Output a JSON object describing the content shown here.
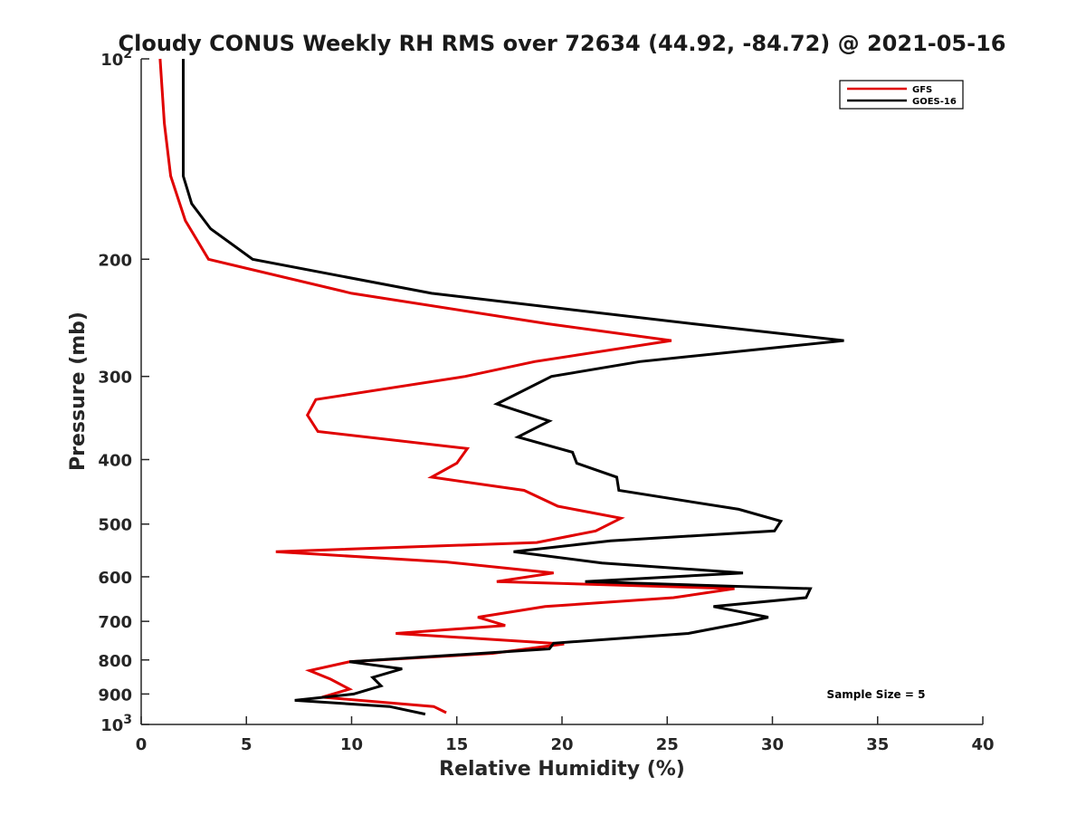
{
  "chart_data": {
    "type": "line",
    "title": "Cloudy CONUS Weekly RH RMS over 72634 (44.92, -84.72) @ 2021-05-16",
    "xlabel": "Relative Humidity (%)",
    "ylabel": "Pressure (mb)",
    "xlim": [
      0,
      40
    ],
    "ylim": [
      100,
      1000
    ],
    "yscale": "log",
    "y_reversed": true,
    "grid": false,
    "legend_position": "top-right",
    "x_ticks": [
      0,
      5,
      10,
      15,
      20,
      25,
      30,
      35,
      40
    ],
    "x_tick_labels": [
      "0",
      "5",
      "10",
      "15",
      "20",
      "25",
      "30",
      "35",
      "40"
    ],
    "y_ticks": [
      {
        "value": 100,
        "base": "10",
        "exp": "2"
      },
      {
        "value": 200,
        "label": "200"
      },
      {
        "value": 300,
        "label": "300"
      },
      {
        "value": 400,
        "label": "400"
      },
      {
        "value": 500,
        "label": "500"
      },
      {
        "value": 600,
        "label": "600"
      },
      {
        "value": 700,
        "label": "700"
      },
      {
        "value": 800,
        "label": "800"
      },
      {
        "value": 900,
        "label": "900"
      },
      {
        "value": 1000,
        "base": "10",
        "exp": "3"
      }
    ],
    "series": [
      {
        "name": "GFS",
        "color": "#e00000",
        "points": [
          [
            0.9,
            100
          ],
          [
            1.1,
            125
          ],
          [
            1.4,
            150
          ],
          [
            2.1,
            175
          ],
          [
            3.2,
            200
          ],
          [
            10.0,
            225
          ],
          [
            19.3,
            250
          ],
          [
            25.2,
            265
          ],
          [
            18.7,
            285
          ],
          [
            15.4,
            300
          ],
          [
            8.3,
            325
          ],
          [
            7.9,
            343
          ],
          [
            8.4,
            363
          ],
          [
            15.5,
            385
          ],
          [
            15.0,
            405
          ],
          [
            13.8,
            425
          ],
          [
            18.2,
            445
          ],
          [
            19.8,
            470
          ],
          [
            22.8,
            490
          ],
          [
            21.6,
            512
          ],
          [
            18.8,
            533
          ],
          [
            6.4,
            550
          ],
          [
            14.5,
            570
          ],
          [
            19.6,
            592
          ],
          [
            16.9,
            610
          ],
          [
            28.2,
            625
          ],
          [
            25.3,
            645
          ],
          [
            19.2,
            665
          ],
          [
            16.0,
            690
          ],
          [
            17.3,
            710
          ],
          [
            12.1,
            730
          ],
          [
            20.1,
            757
          ],
          [
            16.7,
            782
          ],
          [
            9.9,
            805
          ],
          [
            8.0,
            830
          ],
          [
            9.0,
            855
          ],
          [
            9.9,
            885
          ],
          [
            8.6,
            910
          ],
          [
            13.9,
            940
          ],
          [
            14.5,
            960
          ]
        ]
      },
      {
        "name": "GOES-16",
        "color": "#000000",
        "points": [
          [
            2.0,
            100
          ],
          [
            2.0,
            125
          ],
          [
            2.0,
            150
          ],
          [
            2.4,
            165
          ],
          [
            3.3,
            180
          ],
          [
            5.3,
            200
          ],
          [
            13.8,
            225
          ],
          [
            26.2,
            250
          ],
          [
            33.4,
            265
          ],
          [
            23.7,
            285
          ],
          [
            19.5,
            300
          ],
          [
            16.9,
            330
          ],
          [
            19.4,
            350
          ],
          [
            17.9,
            370
          ],
          [
            20.5,
            390
          ],
          [
            20.7,
            405
          ],
          [
            22.6,
            425
          ],
          [
            22.7,
            445
          ],
          [
            28.4,
            475
          ],
          [
            30.4,
            495
          ],
          [
            30.1,
            512
          ],
          [
            22.3,
            530
          ],
          [
            17.7,
            550
          ],
          [
            21.9,
            572
          ],
          [
            28.6,
            592
          ],
          [
            21.1,
            610
          ],
          [
            31.8,
            625
          ],
          [
            31.6,
            645
          ],
          [
            27.2,
            665
          ],
          [
            29.8,
            690
          ],
          [
            28.5,
            705
          ],
          [
            26.0,
            730
          ],
          [
            19.6,
            755
          ],
          [
            19.4,
            770
          ],
          [
            9.9,
            805
          ],
          [
            12.4,
            825
          ],
          [
            11.0,
            850
          ],
          [
            11.4,
            875
          ],
          [
            10.1,
            900
          ],
          [
            7.3,
            920
          ],
          [
            11.8,
            940
          ],
          [
            13.5,
            965
          ]
        ]
      }
    ],
    "legend": [
      {
        "label": "GFS",
        "color": "#e00000"
      },
      {
        "label": "GOES-16",
        "color": "#000000"
      }
    ],
    "annotation": "Sample Size = 5"
  }
}
